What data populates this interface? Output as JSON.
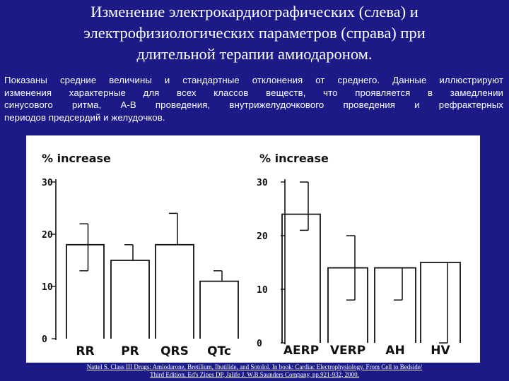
{
  "slide": {
    "title_lines": [
      "Изменение электрокардиографических (слева) и",
      "электрофизиологических параметров (справа) при",
      "длительной терапии амиодароном."
    ],
    "description_lines": [
      "Показаны средние величины и стандартные отклонения от среднего. Данные иллюстрируют",
      "изменения характерные для всех классов веществ, что проявляется в замедлении",
      "синусового ритма, А-В проведения, внутрижелудочкового проведения и рефрактерных",
      "периодов предсердий и желудочков."
    ],
    "citation_lines": [
      "Nattel S. Class III Drugs: Amiodarone, Bretilium, Ibutilide, and Sotolol. In book: Cardiac Electrophysiology. From Cell to Bedside/",
      "Third Edition. Ed's Zipes DP, Jalife J.  W.B.Saunders Company, pp.921-932, 2000."
    ],
    "colors": {
      "background": "#1b1a86",
      "text": "#ffffff",
      "figure_background": "#ffffff",
      "ink": "#111111"
    }
  },
  "chart_data": [
    {
      "type": "bar",
      "ylabel": "% increase",
      "categories": [
        "RR",
        "PR",
        "QRS",
        "QTc"
      ],
      "values": [
        18,
        15,
        18,
        11
      ],
      "error_upper": [
        4,
        3,
        6,
        2
      ],
      "error_lower": [
        5,
        0,
        0,
        0
      ],
      "ylim": [
        0,
        30
      ],
      "yticks": [
        "0",
        "10",
        "20",
        "30"
      ],
      "grid": false
    },
    {
      "type": "bar",
      "ylabel": "% increase",
      "categories": [
        "AERP",
        "VERP",
        "AH",
        "HV"
      ],
      "values": [
        24,
        14,
        14,
        15
      ],
      "error_upper": [
        6,
        6,
        0,
        0
      ],
      "error_lower": [
        3,
        6,
        6,
        15
      ],
      "ylim": [
        0,
        30
      ],
      "yticks": [
        "0",
        "10",
        "20",
        "30"
      ],
      "grid": false
    }
  ]
}
